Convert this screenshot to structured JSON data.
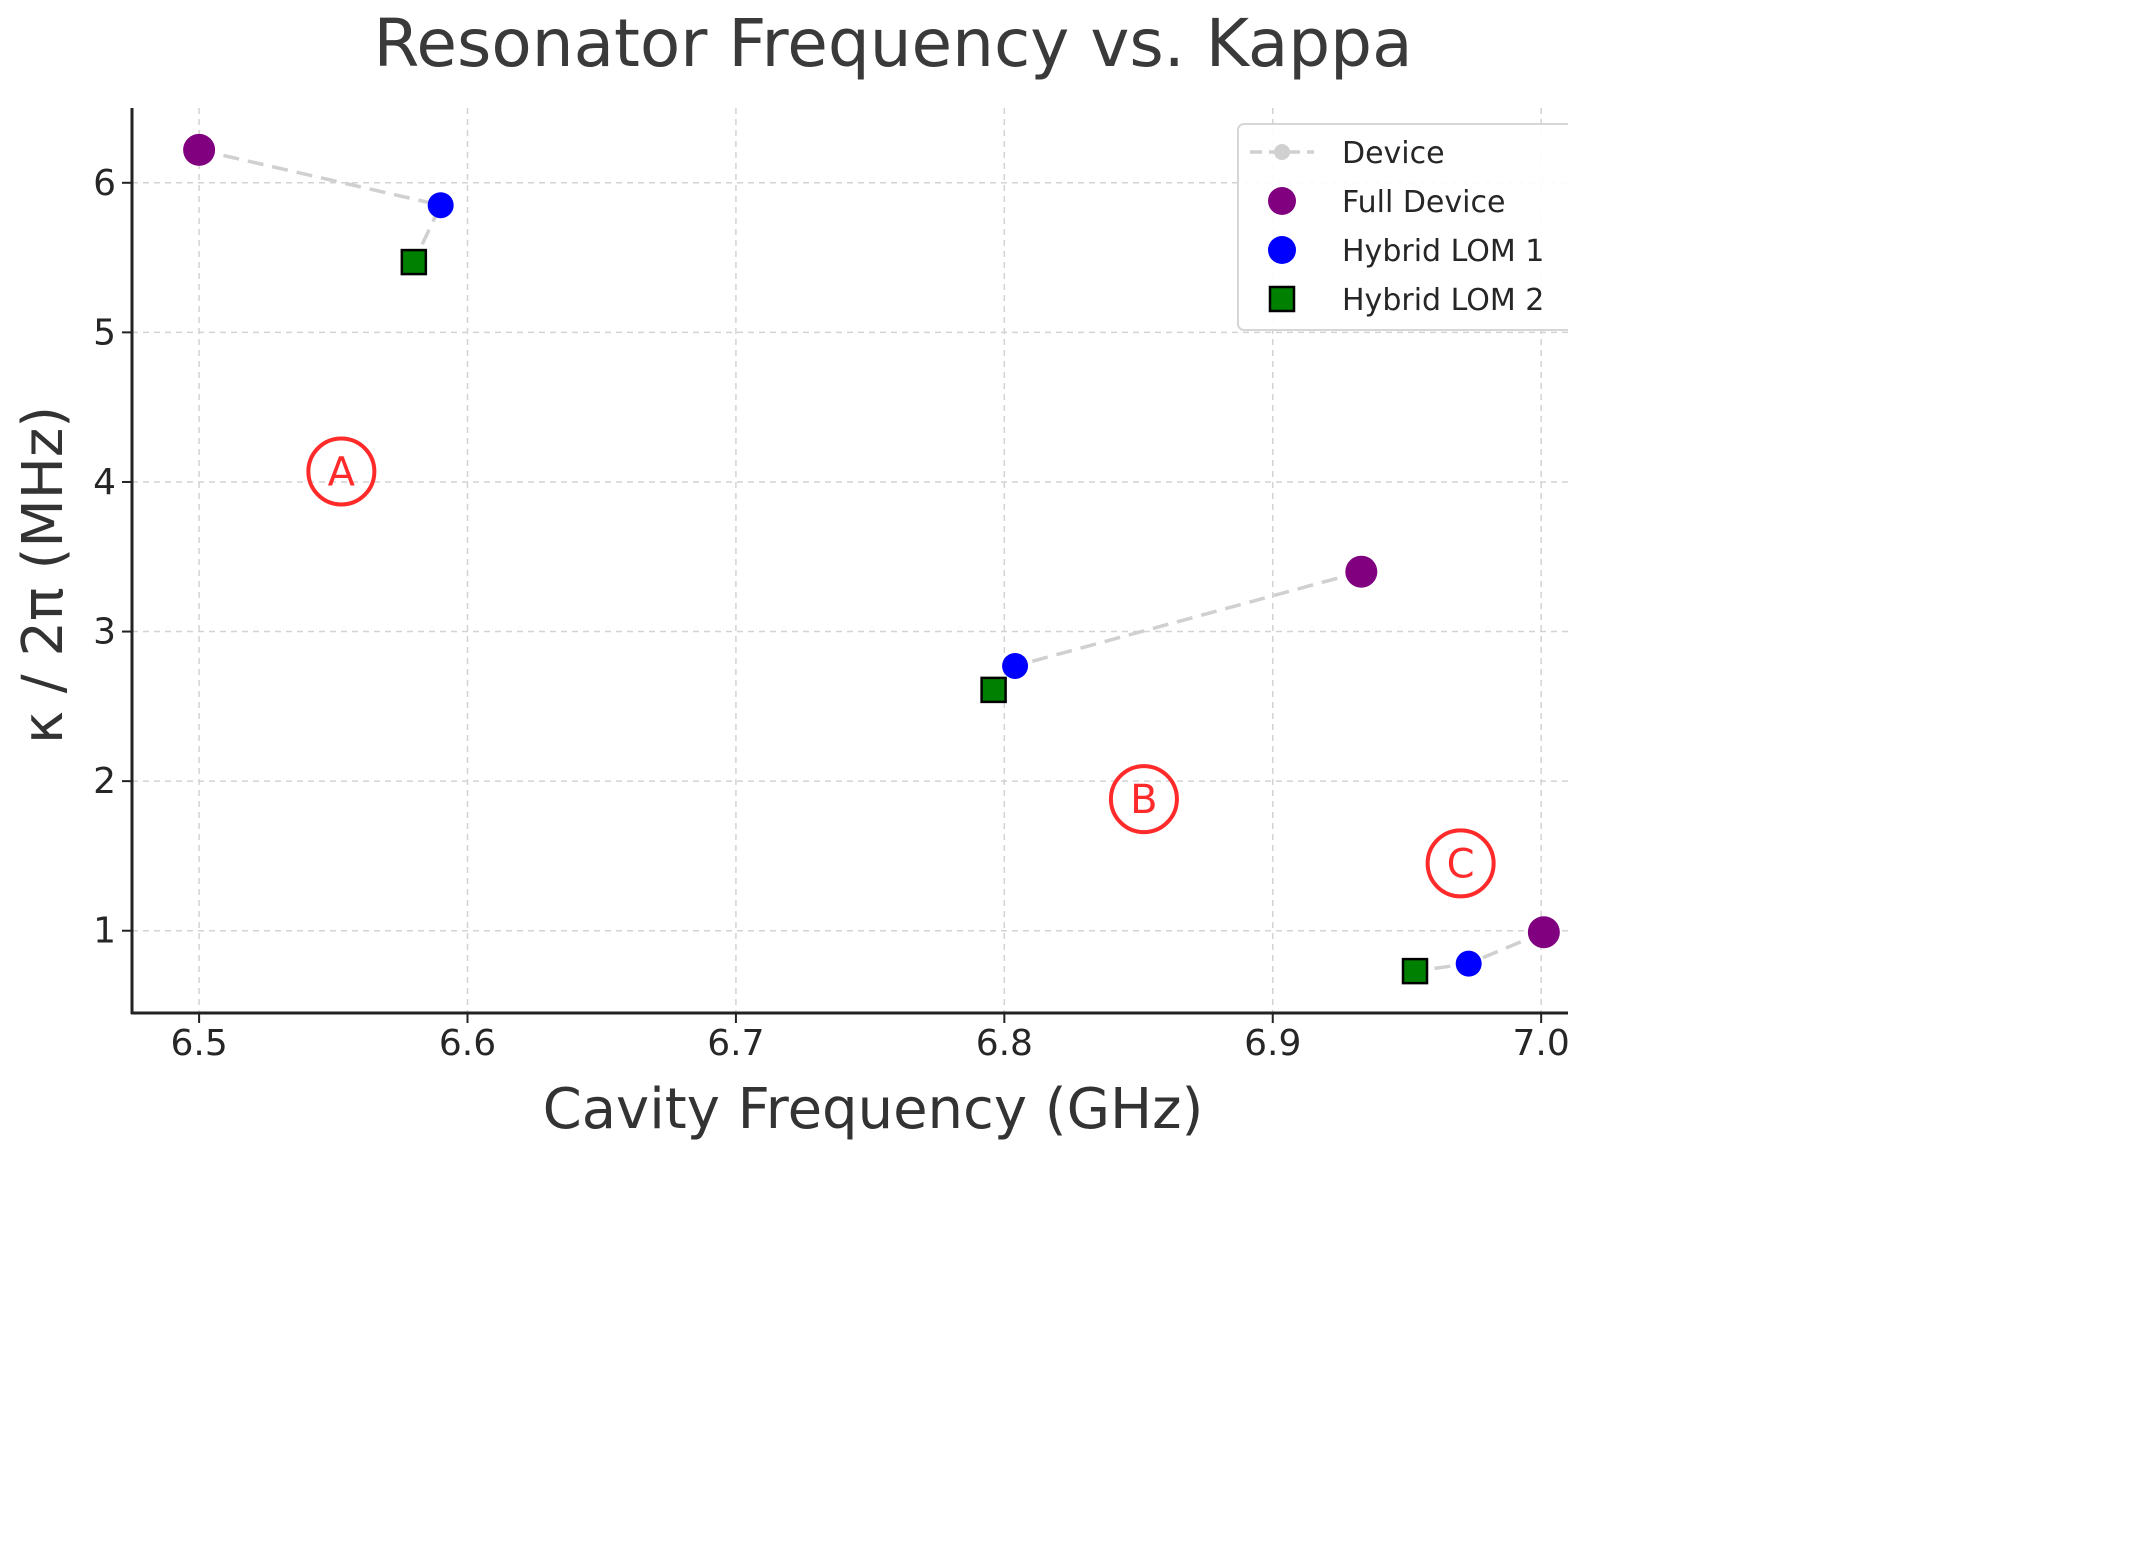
{
  "chart_data": {
    "type": "scatter",
    "title": "Resonator Frequency vs. Kappa",
    "xlabel": "Cavity Frequency (GHz)",
    "ylabel": "κ / 2π (MHz)",
    "xlim": [
      6.475,
      7.01
    ],
    "ylim": [
      0.45,
      6.5
    ],
    "xticks": [
      6.5,
      6.6,
      6.7,
      6.8,
      6.9,
      7.0
    ],
    "xtick_labels": [
      "6.5",
      "6.6",
      "6.7",
      "6.8",
      "6.9",
      "7.0"
    ],
    "yticks": [
      1,
      2,
      3,
      4,
      5,
      6
    ],
    "ytick_labels": [
      "1",
      "2",
      "3",
      "4",
      "5",
      "6"
    ],
    "grid": true,
    "legend_position": "top-right",
    "legend": [
      {
        "label": "Device",
        "marker": "dashed-line",
        "color": "#d0d0d0"
      },
      {
        "label": "Full Device",
        "marker": "circle",
        "color": "#800080"
      },
      {
        "label": "Hybrid LOM 1",
        "marker": "circle",
        "color": "#0000ff"
      },
      {
        "label": "Hybrid LOM 2",
        "marker": "square",
        "color": "#008000"
      }
    ],
    "devices": [
      {
        "label": "A",
        "points": {
          "full": [
            6.5,
            6.22
          ],
          "lom1": [
            6.59,
            5.85
          ],
          "lom2": [
            6.58,
            5.47
          ]
        }
      },
      {
        "label": "B",
        "points": {
          "full": [
            6.933,
            3.4
          ],
          "lom1": [
            6.804,
            2.77
          ],
          "lom2": [
            6.796,
            2.61
          ]
        }
      },
      {
        "label": "C",
        "points": {
          "full": [
            7.001,
            0.99
          ],
          "lom1": [
            6.973,
            0.78
          ],
          "lom2": [
            6.953,
            0.73
          ]
        }
      }
    ],
    "colors": {
      "full": "#800080",
      "lom1": "#0000ff",
      "lom2": "#008000",
      "device_line": "#d0d0d0",
      "annotation": "#ff2a2a"
    }
  }
}
